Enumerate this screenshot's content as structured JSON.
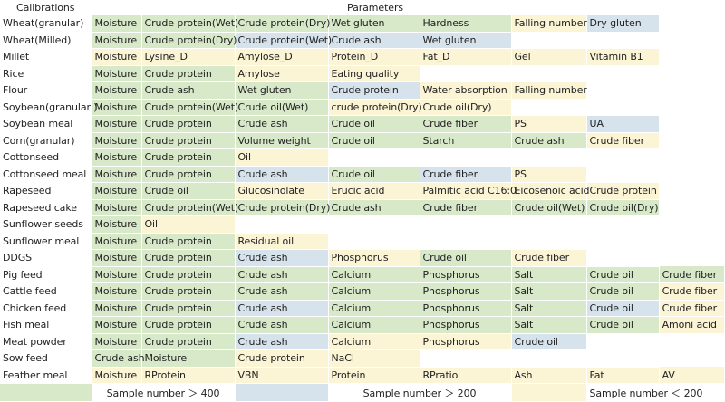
{
  "header": {
    "calibrations": "Calibrations",
    "parameters": "Parameters"
  },
  "colors": {
    "g": "#d8e9c9",
    "b": "#d6e3ec",
    "y": "#fbf4d5",
    "w": "#ffffff"
  },
  "rows": [
    {
      "name": "Wheat(granular)",
      "cells": [
        [
          "Moisture",
          "g"
        ],
        [
          "Crude protein(Wet)",
          "g"
        ],
        [
          "Crude protein(Dry)",
          "g"
        ],
        [
          "Wet gluten",
          "g"
        ],
        [
          "Hardness",
          "g"
        ],
        [
          "Falling number",
          "y"
        ],
        [
          "Dry gluten",
          "b"
        ]
      ]
    },
    {
      "name": "Wheat(Milled)",
      "cells": [
        [
          "Moisture",
          "g"
        ],
        [
          "Crude protein(Dry)",
          "g"
        ],
        [
          "Crude protein(Wet)",
          "b"
        ],
        [
          "Crude ash",
          "b"
        ],
        [
          "Wet gluten",
          "b"
        ],
        [
          "",
          "w"
        ],
        [
          "",
          "w"
        ]
      ]
    },
    {
      "name": "Millet",
      "cells": [
        [
          "Moisture",
          "y"
        ],
        [
          "Lysine_D",
          "y"
        ],
        [
          "Amylose_D",
          "y"
        ],
        [
          "Protein_D",
          "y"
        ],
        [
          "Fat_D",
          "y"
        ],
        [
          "Gel",
          "y"
        ],
        [
          "Vitamin B1",
          "y"
        ]
      ]
    },
    {
      "name": "Rice",
      "cells": [
        [
          "Moisture",
          "g"
        ],
        [
          "Crude protein",
          "g"
        ],
        [
          "Amylose",
          "y"
        ],
        [
          "Eating quality",
          "y"
        ],
        [
          "",
          "w"
        ],
        [
          "",
          "w"
        ],
        [
          "",
          "w"
        ]
      ]
    },
    {
      "name": "Flour",
      "cells": [
        [
          "Moisture",
          "g"
        ],
        [
          "Crude ash",
          "g"
        ],
        [
          "Wet gluten",
          "g"
        ],
        [
          "Crude protein",
          "b"
        ],
        [
          "Water absorption",
          "y"
        ],
        [
          "Falling number",
          "y"
        ],
        [
          "",
          "w"
        ]
      ]
    },
    {
      "name": "Soybean(granular )",
      "cells": [
        [
          "Moisture",
          "g"
        ],
        [
          "Crude protein(Wet)",
          "g"
        ],
        [
          "Crude oil(Wet)",
          "g"
        ],
        [
          "crude protein(Dry)",
          "y"
        ],
        [
          "Crude oil(Dry)",
          "y"
        ],
        [
          "",
          "w"
        ],
        [
          "",
          "w"
        ]
      ]
    },
    {
      "name": "Soybean meal",
      "cells": [
        [
          "Moisture",
          "g"
        ],
        [
          "Crude protein",
          "g"
        ],
        [
          "Crude ash",
          "g"
        ],
        [
          "Crude oil",
          "g"
        ],
        [
          "Crude fiber",
          "g"
        ],
        [
          "PS",
          "y"
        ],
        [
          "UA",
          "b"
        ]
      ]
    },
    {
      "name": "Corn(granular)",
      "cells": [
        [
          "Moisture",
          "g"
        ],
        [
          "Crude protein",
          "g"
        ],
        [
          "Volume weight",
          "g"
        ],
        [
          "Crude oil",
          "g"
        ],
        [
          "Starch",
          "g"
        ],
        [
          "Crude ash",
          "g"
        ],
        [
          "Crude fiber",
          "y"
        ]
      ]
    },
    {
      "name": "Cottonseed",
      "cells": [
        [
          "Moisture",
          "g"
        ],
        [
          "Crude protein",
          "g"
        ],
        [
          "Oil",
          "y"
        ],
        [
          "",
          "w"
        ],
        [
          "",
          "w"
        ],
        [
          "",
          "w"
        ],
        [
          "",
          "w"
        ]
      ]
    },
    {
      "name": "Cottonseed meal",
      "cells": [
        [
          "Moisture",
          "g"
        ],
        [
          "Crude protein",
          "g"
        ],
        [
          "Crude ash",
          "b"
        ],
        [
          "Crude oil",
          "g"
        ],
        [
          "Crude fiber",
          "b"
        ],
        [
          "PS",
          "y"
        ],
        [
          "",
          "w"
        ]
      ]
    },
    {
      "name": "Rapeseed",
      "cells": [
        [
          "Moisture",
          "g"
        ],
        [
          "Crude oil",
          "g"
        ],
        [
          "Glucosinolate",
          "y"
        ],
        [
          "Erucic acid",
          "y"
        ],
        [
          "Palmitic acid C16:0",
          "y"
        ],
        [
          "Eicosenoic acid",
          "y"
        ],
        [
          "Crude protein",
          "y"
        ]
      ]
    },
    {
      "name": "Rapeseed cake",
      "cells": [
        [
          "Moisture",
          "g"
        ],
        [
          "Crude protein(Wet)",
          "g"
        ],
        [
          "Crude protein(Dry)",
          "g"
        ],
        [
          "Crude ash",
          "g"
        ],
        [
          "Crude fiber",
          "g"
        ],
        [
          "Crude oil(Wet)",
          "g"
        ],
        [
          "Crude oil(Dry)",
          "g"
        ]
      ]
    },
    {
      "name": "Sunflower seeds",
      "cells": [
        [
          "Moisture",
          "g"
        ],
        [
          "Oil",
          "y"
        ],
        [
          "",
          "w"
        ],
        [
          "",
          "w"
        ],
        [
          "",
          "w"
        ],
        [
          "",
          "w"
        ],
        [
          "",
          "w"
        ]
      ]
    },
    {
      "name": "Sunflower meal",
      "cells": [
        [
          "Moisture",
          "g"
        ],
        [
          "Crude protein",
          "g"
        ],
        [
          "Residual oil",
          "y"
        ],
        [
          "",
          "w"
        ],
        [
          "",
          "w"
        ],
        [
          "",
          "w"
        ],
        [
          "",
          "w"
        ]
      ]
    },
    {
      "name": "DDGS",
      "cells": [
        [
          "Moisture",
          "g"
        ],
        [
          "Crude protein",
          "g"
        ],
        [
          "Crude ash",
          "b"
        ],
        [
          "Phosphorus",
          "y"
        ],
        [
          "Crude oil",
          "g"
        ],
        [
          "Crude fiber",
          "y"
        ],
        [
          "",
          "w"
        ]
      ]
    },
    {
      "name": "Pig feed",
      "cells": [
        [
          "Moisture",
          "g"
        ],
        [
          "Crude protein",
          "g"
        ],
        [
          "Crude ash",
          "g"
        ],
        [
          "Calcium",
          "g"
        ],
        [
          "Phosphorus",
          "g"
        ],
        [
          "Salt",
          "g"
        ],
        [
          "Crude oil",
          "g"
        ],
        [
          "Crude fiber",
          "g"
        ]
      ]
    },
    {
      "name": "Cattle feed",
      "cells": [
        [
          "Moisture",
          "g"
        ],
        [
          "Crude protein",
          "g"
        ],
        [
          "Crude ash",
          "g"
        ],
        [
          "Calcium",
          "g"
        ],
        [
          "Phosphorus",
          "g"
        ],
        [
          "Salt",
          "g"
        ],
        [
          "Crude oil",
          "g"
        ],
        [
          "Crude fiber",
          "y"
        ]
      ]
    },
    {
      "name": "Chicken feed",
      "cells": [
        [
          "Moisture",
          "g"
        ],
        [
          "Crude protein",
          "g"
        ],
        [
          "Crude ash",
          "b"
        ],
        [
          "Calcium",
          "g"
        ],
        [
          "Phosphorus",
          "g"
        ],
        [
          "Salt",
          "g"
        ],
        [
          "Crude oil",
          "b"
        ],
        [
          "Crude fiber",
          "y"
        ]
      ]
    },
    {
      "name": "Fish meal",
      "cells": [
        [
          "Moisture",
          "g"
        ],
        [
          "Crude protein",
          "g"
        ],
        [
          "Crude ash",
          "g"
        ],
        [
          "Calcium",
          "g"
        ],
        [
          "Phosphorus",
          "g"
        ],
        [
          "Salt",
          "g"
        ],
        [
          "Crude oil",
          "g"
        ],
        [
          "Amoni acid",
          "y"
        ]
      ]
    },
    {
      "name": "Meat powder",
      "cells": [
        [
          "Moisture",
          "g"
        ],
        [
          "Crude protein",
          "g"
        ],
        [
          "Crude ash",
          "b"
        ],
        [
          "Calcium",
          "y"
        ],
        [
          "Phosphorus",
          "y"
        ],
        [
          "Crude oil",
          "b"
        ],
        [
          "",
          "w"
        ]
      ]
    },
    {
      "name": "Sow feed",
      "cells": [
        [
          "Crude ash",
          "g"
        ],
        [
          "Moisture",
          "g"
        ],
        [
          "Crude protein",
          "y"
        ],
        [
          "NaCl",
          "y"
        ],
        [
          "",
          "w"
        ],
        [
          "",
          "w"
        ],
        [
          "",
          "w"
        ]
      ]
    },
    {
      "name": "Feather meal",
      "cells": [
        [
          "Moisture",
          "y"
        ],
        [
          "RProtein",
          "y"
        ],
        [
          "VBN",
          "y"
        ],
        [
          "Protein",
          "y"
        ],
        [
          "RPratio",
          "y"
        ],
        [
          "Ash",
          "y"
        ],
        [
          "Fat",
          "y"
        ],
        [
          "AV",
          "y"
        ]
      ]
    }
  ],
  "legend": [
    {
      "label": "Sample number ＞ 400",
      "color": "g"
    },
    {
      "label": "Sample number ＞ 200",
      "color": "b"
    },
    {
      "label": "Sample number ＜ 200",
      "color": "y"
    }
  ]
}
